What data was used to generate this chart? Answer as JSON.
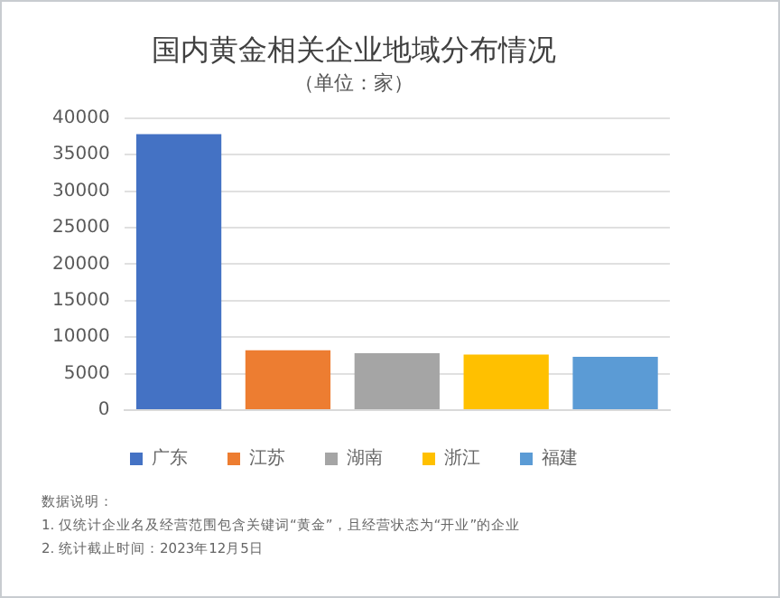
{
  "chart_data": {
    "type": "bar",
    "title": "国内黄金相关企业地域分布情况",
    "subtitle": "（单位：家）",
    "categories": [
      null,
      null,
      null,
      null,
      null
    ],
    "series": [
      {
        "name": "广东",
        "color": "#4472c4",
        "values": [
          37800,
          null,
          null,
          null,
          null
        ]
      },
      {
        "name": "江苏",
        "color": "#ed7d31",
        "values": [
          null,
          8200,
          null,
          null,
          null
        ]
      },
      {
        "name": "湖南",
        "color": "#a5a5a5",
        "values": [
          null,
          null,
          7800,
          null,
          null
        ]
      },
      {
        "name": "浙江",
        "color": "#ffc000",
        "values": [
          null,
          null,
          null,
          7600,
          null
        ]
      },
      {
        "name": "福建",
        "color": "#5b9bd5",
        "values": [
          null,
          null,
          null,
          null,
          7300
        ]
      }
    ],
    "ylim": [
      0,
      40000
    ],
    "yticks": [
      0,
      5000,
      10000,
      15000,
      20000,
      25000,
      30000,
      35000,
      40000
    ],
    "grid": "y",
    "legend": "bottom",
    "tick_labels": "y",
    "annotations": [
      "数据说明：",
      "1. 仅统计企业名及经营范围包含关键词“黄金”，且经营状态为“开业”的企业",
      "2. 统计截止时间：2023年12月5日"
    ]
  }
}
